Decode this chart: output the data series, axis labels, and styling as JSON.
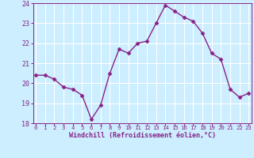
{
  "x": [
    0,
    1,
    2,
    3,
    4,
    5,
    6,
    7,
    8,
    9,
    10,
    11,
    12,
    13,
    14,
    15,
    16,
    17,
    18,
    19,
    20,
    21,
    22,
    23
  ],
  "y": [
    20.4,
    20.4,
    20.2,
    19.8,
    19.7,
    19.4,
    18.2,
    18.9,
    20.5,
    21.7,
    21.5,
    22.0,
    22.1,
    23.0,
    23.9,
    23.6,
    23.3,
    23.1,
    22.5,
    21.5,
    21.2,
    19.7,
    19.3,
    19.5
  ],
  "line_color": "#882288",
  "marker": "D",
  "marker_size": 2.5,
  "bg_color": "#cceeff",
  "grid_color": "#ffffff",
  "xlabel": "Windchill (Refroidissement éolien,°C)",
  "tick_color": "#882288",
  "ylim": [
    18,
    24
  ],
  "xlim": [
    -0.3,
    23.3
  ],
  "yticks": [
    18,
    19,
    20,
    21,
    22,
    23,
    24
  ],
  "xticks": [
    0,
    1,
    2,
    3,
    4,
    5,
    6,
    7,
    8,
    9,
    10,
    11,
    12,
    13,
    14,
    15,
    16,
    17,
    18,
    19,
    20,
    21,
    22,
    23
  ],
  "linewidth": 1.0
}
